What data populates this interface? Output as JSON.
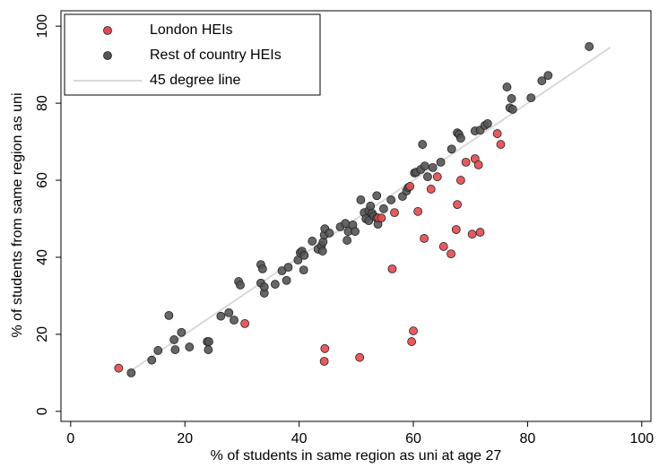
{
  "chart_data": {
    "type": "scatter",
    "x_label": "% of students in same region as uni at age 27",
    "y_label": "% of students from same region as uni",
    "xlim": [
      -1.7,
      101.6
    ],
    "ylim": [
      -2.6,
      104
    ],
    "xticks": [
      0,
      20,
      40,
      60,
      80,
      100
    ],
    "yticks": [
      0,
      20,
      40,
      60,
      80,
      100
    ],
    "legend": "top-left",
    "series": [
      {
        "name": "Rest of country HEIs",
        "color": "#555555",
        "x": [
          10.6,
          14.2,
          15.3,
          17.2,
          18.1,
          18.3,
          19.4,
          20.8,
          23.9,
          24.2,
          24.1,
          26.3,
          27.7,
          28.6,
          29.4,
          29.7,
          33.3,
          33.6,
          33.3,
          33.9,
          33.9,
          35.8,
          37.0,
          38.1,
          37.8,
          39.8,
          40.2,
          40.5,
          40.9,
          40.8,
          42.3,
          43.3,
          43.9,
          44.1,
          44.2,
          44.4,
          44.5,
          45.3,
          47.2,
          48.1,
          48.4,
          48.6,
          49.4,
          49.8,
          50.8,
          51.4,
          51.7,
          52.2,
          52.2,
          52.5,
          52.8,
          53.1,
          53.6,
          53.6,
          53.8,
          54.8,
          56.1,
          58.1,
          58.8,
          59.1,
          60.2,
          60.5,
          61.3,
          61.6,
          62.0,
          62.5,
          63.4,
          64.8,
          66.7,
          67.7,
          68.0,
          68.3,
          70.8,
          71.7,
          72.5,
          73.0,
          76.4,
          76.9,
          77.4,
          77.2,
          80.6,
          82.5,
          83.6,
          90.8
        ],
        "y": [
          10.0,
          13.3,
          15.8,
          24.9,
          18.6,
          16.0,
          20.5,
          16.7,
          18.1,
          18.1,
          16.0,
          24.7,
          25.6,
          23.7,
          33.7,
          32.8,
          38.1,
          37.0,
          33.3,
          30.7,
          32.3,
          33.0,
          36.5,
          37.4,
          34.0,
          39.3,
          41.2,
          41.6,
          40.5,
          36.7,
          44.2,
          42.1,
          43.0,
          41.6,
          44.0,
          45.8,
          47.4,
          46.3,
          47.9,
          48.8,
          44.4,
          46.7,
          48.4,
          46.7,
          54.9,
          51.6,
          50.0,
          49.5,
          52.1,
          53.3,
          51.4,
          50.7,
          56.0,
          50.2,
          48.6,
          52.6,
          54.9,
          55.8,
          57.2,
          58.1,
          61.9,
          62.1,
          62.8,
          69.3,
          63.7,
          60.9,
          63.3,
          64.7,
          68.1,
          72.3,
          71.9,
          70.9,
          72.8,
          73.0,
          74.2,
          74.7,
          84.2,
          78.8,
          78.4,
          81.2,
          81.4,
          85.8,
          87.2,
          94.7
        ]
      },
      {
        "name": "London HEIs",
        "color": "#e8474d",
        "x": [
          8.4,
          30.5,
          44.5,
          44.4,
          50.6,
          60.0,
          59.7,
          56.3,
          56.7,
          53.9,
          54.4,
          60.8,
          63.1,
          64.2,
          61.9,
          65.3,
          66.6,
          67.5,
          67.7,
          68.3,
          69.2,
          70.3,
          71.7,
          70.8,
          71.4,
          74.7,
          75.3,
          59.4
        ],
        "y": [
          11.2,
          22.8,
          16.3,
          13.0,
          14.0,
          20.9,
          18.1,
          37.0,
          51.6,
          50.2,
          50.2,
          51.9,
          57.7,
          60.9,
          44.9,
          42.8,
          40.9,
          47.2,
          53.7,
          60.0,
          64.7,
          46.0,
          46.5,
          65.6,
          64.0,
          72.1,
          69.3,
          58.4
        ]
      }
    ],
    "ref_line": {
      "name": "45 degree line",
      "color": "#d9d9d9",
      "x": [
        10.3,
        94.5
      ],
      "y": [
        10.3,
        94.5
      ]
    }
  }
}
